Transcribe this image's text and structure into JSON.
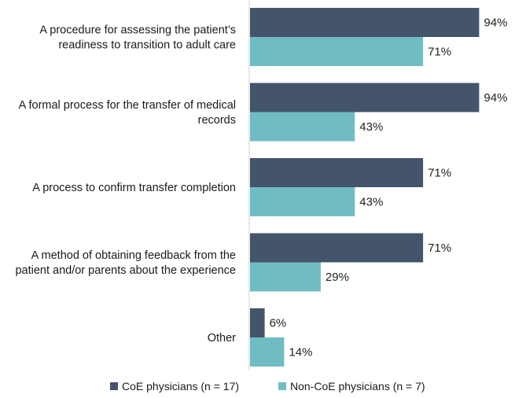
{
  "chart_data": {
    "type": "bar",
    "orientation": "horizontal",
    "title": "",
    "xlabel": "",
    "ylabel": "",
    "xlim": [
      0,
      100
    ],
    "grid": false,
    "legend_position": "bottom",
    "value_suffix": "%",
    "categories": [
      [
        "A procedure for assessing the patient’s",
        "readiness to transition to adult care"
      ],
      [
        "A formal process for the transfer of medical",
        "records"
      ],
      [
        "A process to confirm transfer completion"
      ],
      [
        "A method of obtaining feedback from the",
        "patient and/or parents about the experience"
      ],
      [
        "Other"
      ]
    ],
    "series": [
      {
        "name": "CoE physicians (n = 17)",
        "color": "#44546a",
        "values": [
          94,
          94,
          71,
          71,
          6
        ]
      },
      {
        "name": "Non-CoE physicians (n = 7)",
        "color": "#70bcc3",
        "values": [
          71,
          43,
          43,
          29,
          14
        ]
      }
    ]
  }
}
